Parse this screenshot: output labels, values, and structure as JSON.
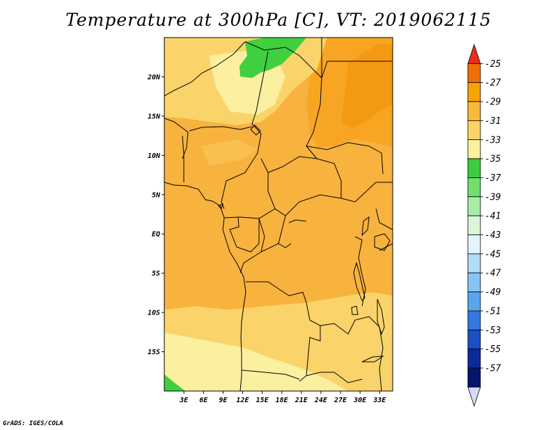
{
  "title": "Temperature at 300hPa [C], VT: 2019062115",
  "credit": "GrADS: IGES/COLA",
  "map": {
    "lon_range": [
      0,
      35
    ],
    "lat_range": [
      -20,
      25
    ],
    "lat_ticks": [
      {
        "value": 20,
        "label": "20N"
      },
      {
        "value": 15,
        "label": "15N"
      },
      {
        "value": 10,
        "label": "10N"
      },
      {
        "value": 5,
        "label": "5N"
      },
      {
        "value": 0,
        "label": "EQ"
      },
      {
        "value": -5,
        "label": "5S"
      },
      {
        "value": -10,
        "label": "10S"
      },
      {
        "value": -15,
        "label": "15S"
      }
    ],
    "lon_ticks": [
      {
        "value": 3,
        "label": "3E"
      },
      {
        "value": 6,
        "label": "6E"
      },
      {
        "value": 9,
        "label": "9E"
      },
      {
        "value": 12,
        "label": "12E"
      },
      {
        "value": 15,
        "label": "15E"
      },
      {
        "value": 18,
        "label": "18E"
      },
      {
        "value": 21,
        "label": "21E"
      },
      {
        "value": 24,
        "label": "24E"
      },
      {
        "value": 27,
        "label": "27E"
      },
      {
        "value": 30,
        "label": "30E"
      },
      {
        "value": 33,
        "label": "33E"
      }
    ]
  },
  "colorbar": {
    "labels": [
      "-25",
      "-27",
      "-29",
      "-31",
      "-33",
      "-35",
      "-37",
      "-39",
      "-41",
      "-43",
      "-45",
      "-47",
      "-49",
      "-51",
      "-53",
      "-55",
      "-57"
    ],
    "colors": [
      "#e8301a",
      "#f36d07",
      "#f8a20a",
      "#f9b83c",
      "#fad46a",
      "#fbf0a0",
      "#3ccc3c",
      "#70de70",
      "#a8eca8",
      "#daf5da",
      "#e4f4fc",
      "#b0dcf8",
      "#88c4f2",
      "#5aa6ec",
      "#3278e0",
      "#1a50c4",
      "#0c2a9a",
      "#06166e",
      "#d8d8f8"
    ]
  }
}
